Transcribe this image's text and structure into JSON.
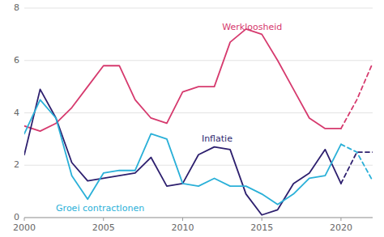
{
  "chart_data": {
    "type": "line",
    "x": [
      2000,
      2001,
      2002,
      2003,
      2004,
      2005,
      2006,
      2007,
      2008,
      2009,
      2010,
      2011,
      2012,
      2013,
      2014,
      2015,
      2016,
      2017,
      2018,
      2019,
      2020,
      2021,
      2022
    ],
    "series": [
      {
        "color": "#d63a6e",
        "line_style": "solid",
        "values": [
          3.5,
          3.3,
          3.6,
          4.2,
          5.0,
          5.8,
          5.8,
          4.5,
          3.8,
          3.6,
          4.8,
          5.0,
          5.0,
          6.7,
          7.2,
          7.0,
          6.0,
          4.9,
          3.8,
          3.4,
          3.4,
          null,
          null
        ]
      },
      {
        "color": "#d63a6e",
        "line_style": "dashed",
        "values": [
          null,
          null,
          null,
          null,
          null,
          null,
          null,
          null,
          null,
          null,
          null,
          null,
          null,
          null,
          null,
          null,
          null,
          null,
          null,
          null,
          3.4,
          4.5,
          5.9
        ]
      },
      {
        "color": "#2d1f6e",
        "line_style": "solid",
        "values": [
          2.4,
          4.9,
          3.8,
          2.1,
          1.4,
          1.5,
          1.6,
          1.7,
          2.3,
          1.2,
          1.3,
          2.4,
          2.7,
          2.6,
          0.9,
          0.1,
          0.3,
          1.3,
          1.7,
          2.6,
          1.3,
          null,
          null
        ]
      },
      {
        "color": "#2d1f6e",
        "line_style": "dashed",
        "values": [
          null,
          null,
          null,
          null,
          null,
          null,
          null,
          null,
          null,
          null,
          null,
          null,
          null,
          null,
          null,
          null,
          null,
          null,
          null,
          null,
          1.3,
          2.5,
          2.5
        ]
      },
      {
        "color": "#2ab0d8",
        "line_style": "solid",
        "values": [
          3.2,
          4.5,
          3.8,
          1.6,
          0.7,
          1.7,
          1.8,
          1.8,
          3.2,
          3.0,
          1.3,
          1.2,
          1.5,
          1.2,
          1.2,
          0.9,
          0.5,
          0.9,
          1.5,
          1.6,
          2.8,
          null,
          null
        ]
      },
      {
        "color": "#2ab0d8",
        "line_style": "dashed",
        "values": [
          null,
          null,
          null,
          null,
          null,
          null,
          null,
          null,
          null,
          null,
          null,
          null,
          null,
          null,
          null,
          null,
          null,
          null,
          null,
          null,
          2.8,
          2.5,
          1.4
        ]
      }
    ],
    "annotations": [
      {
        "text": "Werkloosheid",
        "x": 2012.5,
        "y": 7.4,
        "color": "#d63a6e"
      },
      {
        "text": "Inflatie",
        "x": 2011.2,
        "y": 3.15,
        "color": "#2d1f6e"
      },
      {
        "text": "Groei contractlonen",
        "x": 2002.0,
        "y": 0.5,
        "color": "#2ab0d8"
      }
    ],
    "xlim": [
      2000,
      2022
    ],
    "ylim": [
      0,
      8
    ],
    "xticks": [
      2000,
      2005,
      2010,
      2015,
      2020
    ],
    "yticks": [
      0,
      2,
      4,
      6,
      8
    ],
    "grid": true
  }
}
